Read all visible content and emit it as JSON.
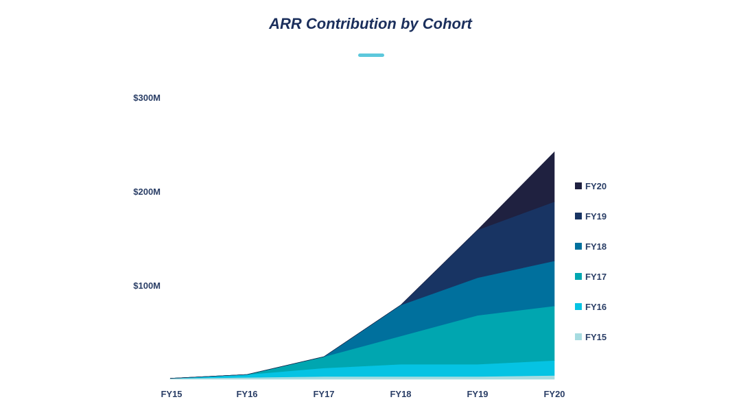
{
  "chart_data": {
    "type": "area",
    "stacked": true,
    "title": "ARR Contribution by Cohort",
    "x": [
      "FY15",
      "FY16",
      "FY17",
      "FY18",
      "FY19",
      "FY20"
    ],
    "y_ticks": [
      "$100M",
      "$200M",
      "$300M"
    ],
    "ylim": [
      0,
      300
    ],
    "y_units": "$M",
    "grid": false,
    "legend_position": "right",
    "series": [
      {
        "name": "FY15",
        "color": "#a6dbe0",
        "values": [
          1,
          2,
          3,
          3,
          3,
          4
        ]
      },
      {
        "name": "FY16",
        "color": "#05c3e3",
        "values": [
          0,
          3,
          9,
          13,
          13,
          16
        ]
      },
      {
        "name": "FY17",
        "color": "#00a6b0",
        "values": [
          0,
          0,
          12,
          30,
          52,
          58
        ]
      },
      {
        "name": "FY18",
        "color": "#00709d",
        "values": [
          0,
          0,
          0,
          33,
          40,
          48
        ]
      },
      {
        "name": "FY19",
        "color": "#183463",
        "values": [
          0,
          0,
          0,
          0,
          51,
          63
        ]
      },
      {
        "name": "FY20",
        "color": "#1f2140",
        "values": [
          0,
          0,
          0,
          0,
          0,
          53
        ]
      }
    ]
  }
}
